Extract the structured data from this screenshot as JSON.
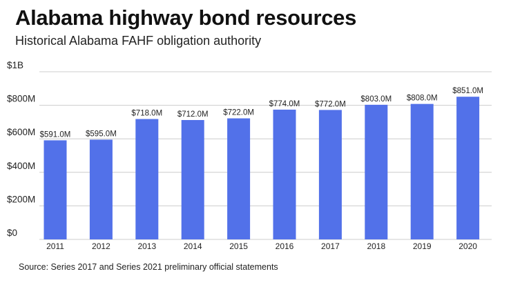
{
  "header": {
    "title": "Alabama highway bond resources",
    "subtitle": "Historical Alabama FAHF obligation authority"
  },
  "footer": {
    "source": "Source: Series 2017 and Series 2021 preliminary official statements"
  },
  "colors": {
    "bar": "#5271e9",
    "grid": "#cccccc",
    "text": "#222222"
  },
  "chart_data": {
    "type": "bar",
    "title": "Alabama highway bond resources",
    "subtitle": "Historical Alabama FAHF obligation authority",
    "xlabel": "",
    "ylabel": "",
    "categories": [
      "2011",
      "2012",
      "2013",
      "2014",
      "2015",
      "2016",
      "2017",
      "2018",
      "2019",
      "2020"
    ],
    "values": [
      591.0,
      595.0,
      718.0,
      712.0,
      722.0,
      774.0,
      772.0,
      803.0,
      808.0,
      851.0
    ],
    "value_labels": [
      "$591.0M",
      "$595.0M",
      "$718.0M",
      "$712.0M",
      "$722.0M",
      "$774.0M",
      "$772.0M",
      "$803.0M",
      "$808.0M",
      "$851.0M"
    ],
    "unit": "million USD",
    "ylim": [
      0,
      1000
    ],
    "yticks": [
      0,
      200,
      400,
      600,
      800,
      1000
    ],
    "ytick_labels": [
      "$0",
      "$200M",
      "$400M",
      "$600M",
      "$800M",
      "$1B"
    ],
    "grid": true,
    "legend": "none"
  }
}
